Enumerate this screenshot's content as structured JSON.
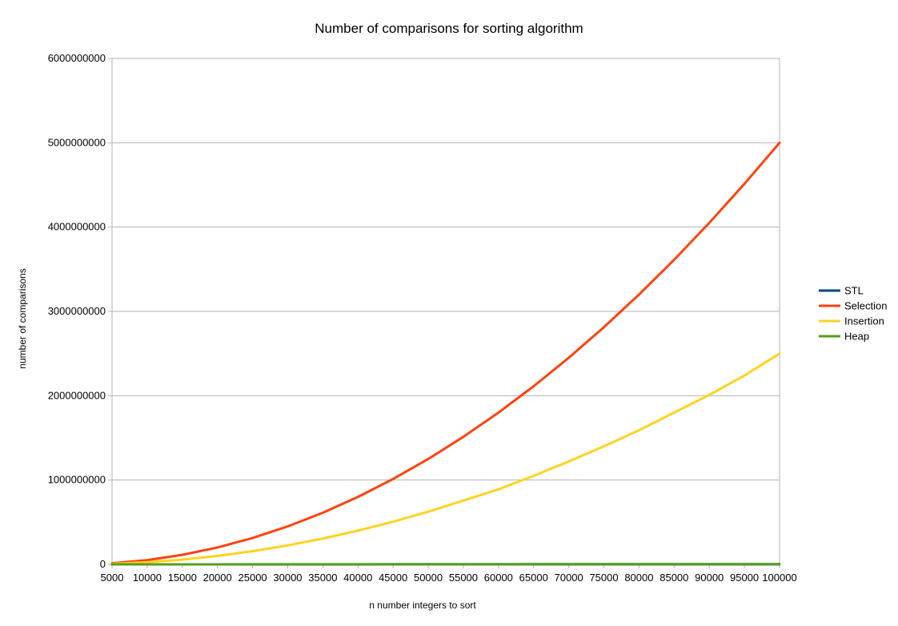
{
  "chart_data": {
    "type": "line",
    "title": "Number of comparisons for sorting algorithm",
    "xlabel": "n number integers to sort",
    "ylabel": "number of comparisons",
    "x": [
      5000,
      10000,
      15000,
      20000,
      25000,
      30000,
      35000,
      40000,
      45000,
      50000,
      55000,
      60000,
      65000,
      70000,
      75000,
      80000,
      85000,
      90000,
      95000,
      100000
    ],
    "x_tick_labels": [
      "5000",
      "10000",
      "15000",
      "20000",
      "25000",
      "30000",
      "35000",
      "40000",
      "45000",
      "50000",
      "55000",
      "60000",
      "65000",
      "70000",
      "75000",
      "80000",
      "85000",
      "90000",
      "95000",
      "100000"
    ],
    "ylim": [
      0,
      6000000000
    ],
    "y_ticks": [
      0,
      1000000000,
      2000000000,
      3000000000,
      4000000000,
      5000000000,
      6000000000
    ],
    "y_tick_labels": [
      "0",
      "1000000000",
      "2000000000",
      "3000000000",
      "4000000000",
      "5000000000",
      "6000000000"
    ],
    "grid": "horizontal",
    "legend_position": "right",
    "series": [
      {
        "name": "STL",
        "color": "#004586",
        "values": [
          61438,
          132877,
          208373,
          285754,
          365241,
          445754,
          527812,
          611508,
          696145,
          780482,
          866097,
          952340,
          1039400,
          1127020,
          1215425,
          1303015,
          1391600,
          1481180,
          1571200,
          1660964
        ]
      },
      {
        "name": "Selection",
        "color": "#ff420e",
        "values": [
          12497500,
          49995000,
          112492500,
          199990000,
          312487500,
          449985000,
          612482500,
          799980000,
          1012477500,
          1249975000,
          1512472500,
          1799970000,
          2112467500,
          2449965000,
          2812462500,
          3199960000,
          3612457500,
          4049955000,
          4512452500,
          4999950000
        ]
      },
      {
        "name": "Insertion",
        "color": "#ffd320",
        "values": [
          6250000,
          25000000,
          56250000,
          100000000,
          156250000,
          225000000,
          306250000,
          400000000,
          506250000,
          625000000,
          756250000,
          890000000,
          1050000000,
          1220000000,
          1400000000,
          1590000000,
          1800000000,
          2010000000,
          2240000000,
          2500000000
        ]
      },
      {
        "name": "Heap",
        "color": "#579d1c",
        "values": [
          107000,
          233000,
          366000,
          502000,
          640000,
          781000,
          924000,
          1070000,
          1215000,
          1360000,
          1510000,
          1660000,
          1810000,
          1960000,
          2110000,
          2260000,
          2415000,
          2570000,
          2725000,
          2880000
        ]
      }
    ]
  }
}
